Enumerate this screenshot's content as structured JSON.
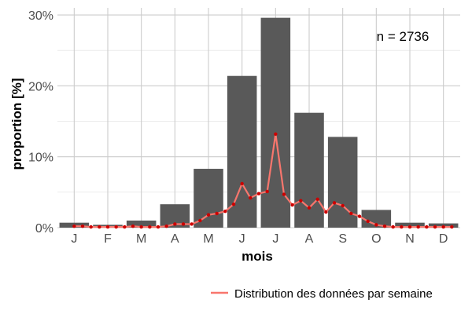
{
  "chart_data": {
    "type": "bar",
    "categories": [
      "J",
      "F",
      "M",
      "A",
      "M",
      "J",
      "J",
      "A",
      "S",
      "O",
      "N",
      "D"
    ],
    "values": [
      0.7,
      0.4,
      1.0,
      3.3,
      8.3,
      21.4,
      29.6,
      16.2,
      12.8,
      2.5,
      0.7,
      0.6
    ],
    "ylim": [
      0,
      31
    ],
    "yticks": [
      0,
      10,
      20,
      30
    ],
    "ytick_labels": [
      "0%",
      "10%",
      "20%",
      "30%"
    ],
    "xlabel": "mois",
    "ylabel": "proportion [%]",
    "annotation": "n = 2736",
    "grid": true,
    "legend_position": "bottom-right",
    "colors": {
      "bars": "#595959",
      "line": "#f8766d",
      "points": "#cc0000",
      "grid": "#cccccc"
    },
    "series": [
      {
        "name": "Distribution des données par semaine",
        "type": "line",
        "x": [
          0.0,
          0.25,
          0.5,
          0.75,
          1.0,
          1.25,
          1.5,
          1.75,
          2.0,
          2.25,
          2.5,
          2.75,
          3.0,
          3.25,
          3.5,
          3.75,
          4.0,
          4.25,
          4.5,
          4.75,
          5.0,
          5.25,
          5.5,
          5.75,
          6.0,
          6.25,
          6.5,
          6.75,
          7.0,
          7.25,
          7.5,
          7.75,
          8.0,
          8.25,
          8.5,
          8.75,
          9.0,
          9.25,
          9.5,
          9.75,
          10.0,
          10.25,
          10.5,
          10.75,
          11.0,
          11.25
        ],
        "values": [
          0.2,
          0.2,
          0.1,
          0.1,
          0.1,
          0.1,
          0.1,
          0.2,
          0.1,
          0.1,
          0.1,
          0.2,
          0.5,
          0.5,
          0.5,
          1.0,
          1.8,
          2.0,
          2.3,
          3.3,
          6.2,
          4.2,
          4.8,
          5.1,
          13.2,
          4.7,
          3.2,
          3.8,
          2.8,
          4.0,
          2.2,
          3.5,
          3.1,
          2.0,
          1.6,
          0.9,
          0.4,
          0.2,
          0.1,
          0.1,
          0.1,
          0.1,
          0.1,
          0.1,
          0.1,
          0.1
        ]
      }
    ]
  }
}
